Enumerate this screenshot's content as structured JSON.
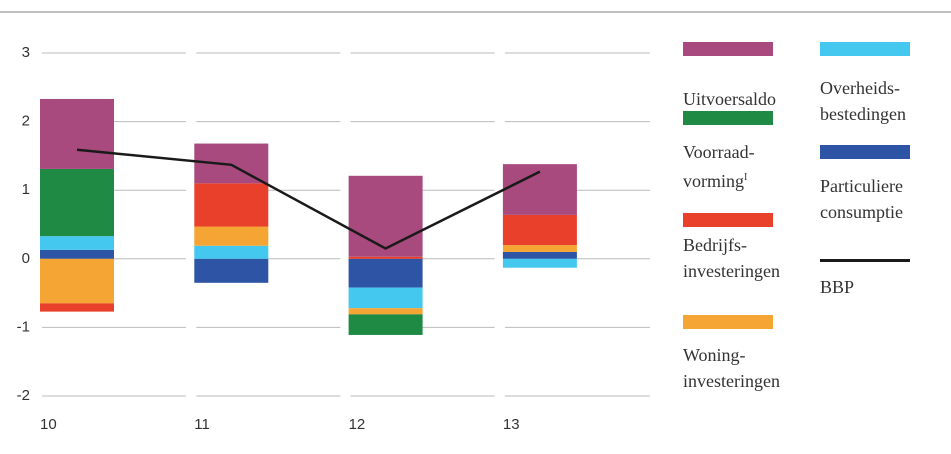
{
  "chart_data": {
    "type": "stacked-bar-line",
    "categories": [
      "10",
      "11",
      "12",
      "13"
    ],
    "ylim": [
      -2.05,
      3.1
    ],
    "yticks": [
      3,
      2,
      1,
      0,
      -1,
      -2
    ],
    "grid": true,
    "series": [
      {
        "name": "Uitvoersaldo",
        "color": "#a84a7e",
        "values": [
          1.02,
          0.58,
          1.18,
          0.74
        ]
      },
      {
        "name": "Voorraad-\nvorming",
        "note_marker": "I",
        "color": "#1e8a44",
        "values": [
          0.98,
          0,
          -0.3,
          0
        ]
      },
      {
        "name": "Bedrijfs-\ninvesteringen",
        "color": "#e8402a",
        "values": [
          -0.12,
          0.63,
          0.03,
          0.44
        ]
      },
      {
        "name": "Woning-\ninvesteringen",
        "color": "#f5a533",
        "values": [
          -0.65,
          0.28,
          -0.09,
          0.1
        ]
      },
      {
        "name": "Overheids-\nbestedingen",
        "color": "#45c8ef",
        "values": [
          0.2,
          0.19,
          -0.3,
          -0.13
        ]
      },
      {
        "name": "Particuliere\nconsumptie",
        "color": "#2e55a5",
        "values": [
          0.13,
          -0.35,
          -0.42,
          0.1
        ]
      },
      {
        "name": "BBP",
        "type": "line",
        "color": "#1a1a1a",
        "values": [
          1.59,
          1.37,
          0.15,
          1.27
        ]
      }
    ]
  }
}
